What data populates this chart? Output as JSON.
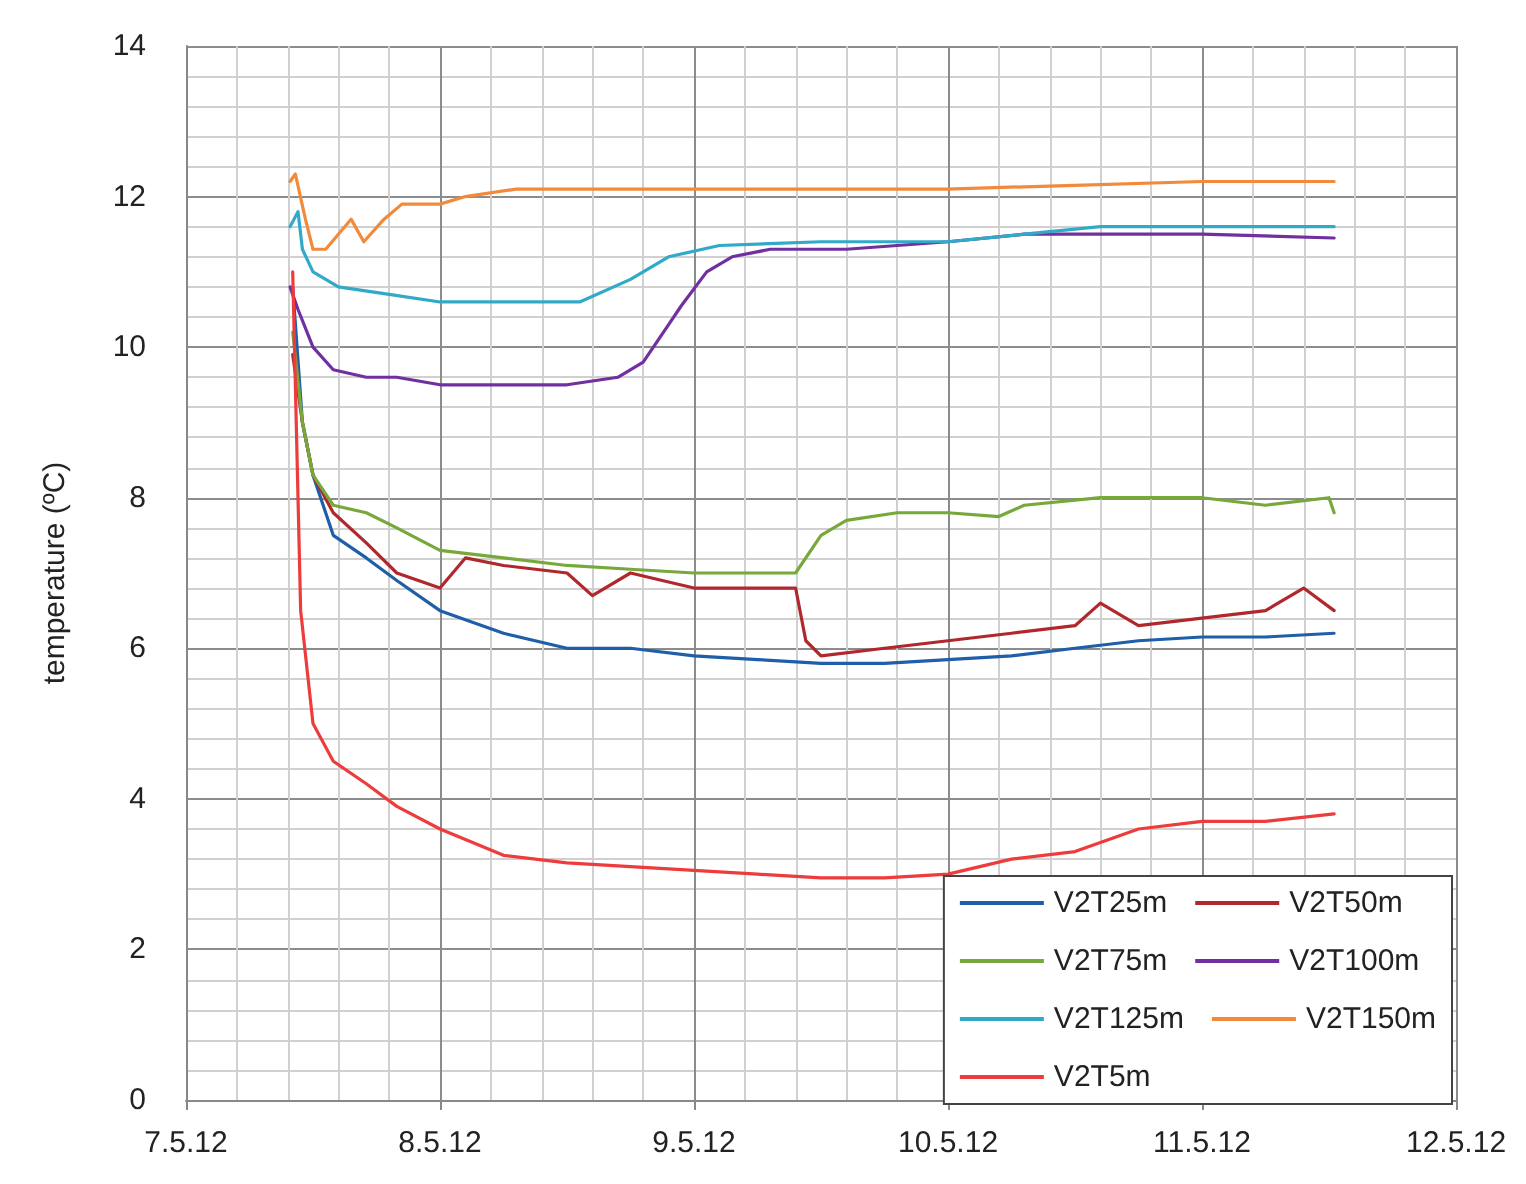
{
  "chart_data": {
    "type": "line",
    "ylabel": "temperature (ºC)",
    "xlim": [
      "--05-07",
      "--05-12"
    ],
    "xticks": [
      {
        "value": "--05-07",
        "label": "7.5.12"
      },
      {
        "value": "--05-08",
        "label": "8.5.12"
      },
      {
        "value": "--05-09",
        "label": "9.5.12"
      },
      {
        "value": "--05-10",
        "label": "10.5.12"
      },
      {
        "value": "--05-11",
        "label": "11.5.12"
      },
      {
        "value": "--05-12",
        "label": "12.5.12"
      }
    ],
    "ylim": [
      0,
      14
    ],
    "yticks": [
      0,
      2,
      4,
      6,
      8,
      10,
      12,
      14
    ],
    "grid": true,
    "legend": "bottom right",
    "marker": "none",
    "line_style": "solid",
    "series": [
      {
        "name": "V2T25m",
        "color": "#1f5ea8",
        "x": [
          "--05-07T10:05",
          "--05-07T11:00",
          "--05-07T12:00",
          "--05-07T13:55",
          "--05-07T17:02",
          "--05-07T19:55",
          "--05-08T00:00",
          "--05-08T06:00",
          "--05-08T12:00",
          "--05-08T18:00",
          "--05-09T00:00",
          "--05-09T06:00",
          "--05-09T12:00",
          "--05-09T18:00",
          "--05-10T00:00",
          "--05-10T06:00",
          "--05-10T12:00",
          "--05-10T18:00",
          "--05-11T00:00",
          "--05-11T06:00",
          "--05-11T12:29"
        ],
        "values": [
          10.8,
          9.0,
          8.3,
          7.5,
          7.2,
          6.9,
          6.5,
          6.2,
          6.0,
          6.0,
          5.9,
          5.85,
          5.8,
          5.8,
          5.85,
          5.9,
          6.0,
          6.1,
          6.15,
          6.15,
          6.2
        ]
      },
      {
        "name": "V2T50m",
        "color": "#b0282c",
        "x": [
          "--05-07T10:05",
          "--05-07T11:00",
          "--05-07T12:00",
          "--05-07T13:55",
          "--05-07T17:02",
          "--05-07T19:55",
          "--05-08T00:00",
          "--05-08T02:24",
          "--05-08T06:00",
          "--05-08T12:00",
          "--05-08T14:24",
          "--05-08T18:00",
          "--05-09T00:00",
          "--05-09T06:00",
          "--05-09T09:36",
          "--05-09T10:34",
          "--05-09T12:00",
          "--05-09T18:00",
          "--05-10T00:00",
          "--05-10T06:00",
          "--05-10T12:00",
          "--05-10T14:24",
          "--05-10T18:00",
          "--05-11T00:00",
          "--05-11T06:00",
          "--05-11T09:36",
          "--05-11T12:29"
        ],
        "values": [
          9.9,
          9.0,
          8.3,
          7.8,
          7.4,
          7.0,
          6.8,
          7.2,
          7.1,
          7.0,
          6.7,
          7.0,
          6.8,
          6.8,
          6.8,
          6.1,
          5.9,
          6.0,
          6.1,
          6.2,
          6.3,
          6.6,
          6.3,
          6.4,
          6.5,
          6.8,
          6.5
        ]
      },
      {
        "name": "V2T75m",
        "color": "#77a83a",
        "x": [
          "--05-07T10:05",
          "--05-07T11:00",
          "--05-07T12:00",
          "--05-07T13:55",
          "--05-07T17:02",
          "--05-07T19:55",
          "--05-08T00:00",
          "--05-08T06:00",
          "--05-08T12:00",
          "--05-08T18:00",
          "--05-09T00:00",
          "--05-09T06:00",
          "--05-09T09:36",
          "--05-09T12:00",
          "--05-09T14:24",
          "--05-09T19:12",
          "--05-10T00:00",
          "--05-10T04:48",
          "--05-10T07:12",
          "--05-10T14:24",
          "--05-11T00:00",
          "--05-11T06:00",
          "--05-11T12:00",
          "--05-11T12:29"
        ],
        "values": [
          10.2,
          9.0,
          8.3,
          7.9,
          7.8,
          7.6,
          7.3,
          7.2,
          7.1,
          7.05,
          7.0,
          7.0,
          7.0,
          7.5,
          7.7,
          7.8,
          7.8,
          7.75,
          7.9,
          8.0,
          8.0,
          7.9,
          8.0,
          7.8
        ]
      },
      {
        "name": "V2T100m",
        "color": "#7030a0",
        "x": [
          "--05-07T09:50",
          "--05-07T10:35",
          "--05-07T12:00",
          "--05-07T13:55",
          "--05-07T17:02",
          "--05-07T19:55",
          "--05-08T00:00",
          "--05-08T06:00",
          "--05-08T12:00",
          "--05-08T16:48",
          "--05-08T19:12",
          "--05-08T21:36",
          "--05-08T22:48",
          "--05-09T01:12",
          "--05-09T03:36",
          "--05-09T07:12",
          "--05-09T14:24",
          "--05-10T00:00",
          "--05-10T07:12",
          "--05-10T16:48",
          "--05-11T00:00",
          "--05-11T12:29"
        ],
        "values": [
          10.8,
          10.5,
          10.0,
          9.7,
          9.6,
          9.6,
          9.5,
          9.5,
          9.5,
          9.6,
          9.8,
          10.3,
          10.55,
          11.0,
          11.2,
          11.3,
          11.3,
          11.4,
          11.5,
          11.5,
          11.5,
          11.45
        ]
      },
      {
        "name": "V2T125m",
        "color": "#31a9c9",
        "x": [
          "--05-07T09:50",
          "--05-07T10:35",
          "--05-07T11:00",
          "--05-07T12:00",
          "--05-07T14:24",
          "--05-07T19:12",
          "--05-08T00:00",
          "--05-08T07:12",
          "--05-08T13:12",
          "--05-08T18:00",
          "--05-08T21:36",
          "--05-09T02:24",
          "--05-09T12:00",
          "--05-10T00:00",
          "--05-10T07:12",
          "--05-10T14:24",
          "--05-11T00:00",
          "--05-11T12:29"
        ],
        "values": [
          11.6,
          11.8,
          11.3,
          11.0,
          10.8,
          10.7,
          10.6,
          10.6,
          10.6,
          10.9,
          11.2,
          11.35,
          11.4,
          11.4,
          11.5,
          11.6,
          11.6,
          11.6
        ]
      },
      {
        "name": "V2T150m",
        "color": "#f28a3c",
        "x": [
          "--05-07T09:50",
          "--05-07T10:20",
          "--05-07T11:17",
          "--05-07T12:00",
          "--05-07T13:12",
          "--05-07T14:24",
          "--05-07T15:36",
          "--05-07T16:48",
          "--05-07T18:43",
          "--05-07T20:24",
          "--05-08T00:00",
          "--05-08T02:24",
          "--05-08T07:12",
          "--05-09T00:00",
          "--05-10T00:00",
          "--05-10T12:00",
          "--05-11T00:00",
          "--05-11T12:29"
        ],
        "values": [
          12.2,
          12.3,
          11.7,
          11.3,
          11.3,
          11.5,
          11.7,
          11.4,
          11.7,
          11.9,
          11.9,
          12.0,
          12.1,
          12.1,
          12.1,
          12.15,
          12.2,
          12.2
        ]
      },
      {
        "name": "V2T5m",
        "color": "#ee3b3b",
        "x": [
          "--05-07T10:05",
          "--05-07T10:50",
          "--05-07T12:00",
          "--05-07T13:55",
          "--05-07T17:02",
          "--05-07T19:55",
          "--05-08T00:00",
          "--05-08T06:00",
          "--05-08T12:00",
          "--05-08T18:00",
          "--05-09T00:00",
          "--05-09T06:00",
          "--05-09T12:00",
          "--05-09T18:00",
          "--05-10T00:00",
          "--05-10T06:00",
          "--05-10T12:00",
          "--05-10T18:00",
          "--05-11T00:00",
          "--05-11T06:00",
          "--05-11T12:29"
        ],
        "values": [
          11.0,
          6.5,
          5.0,
          4.5,
          4.2,
          3.9,
          3.6,
          3.25,
          3.15,
          3.1,
          3.05,
          3.0,
          2.95,
          2.95,
          3.0,
          3.2,
          3.3,
          3.6,
          3.7,
          3.7,
          3.8
        ]
      }
    ]
  }
}
